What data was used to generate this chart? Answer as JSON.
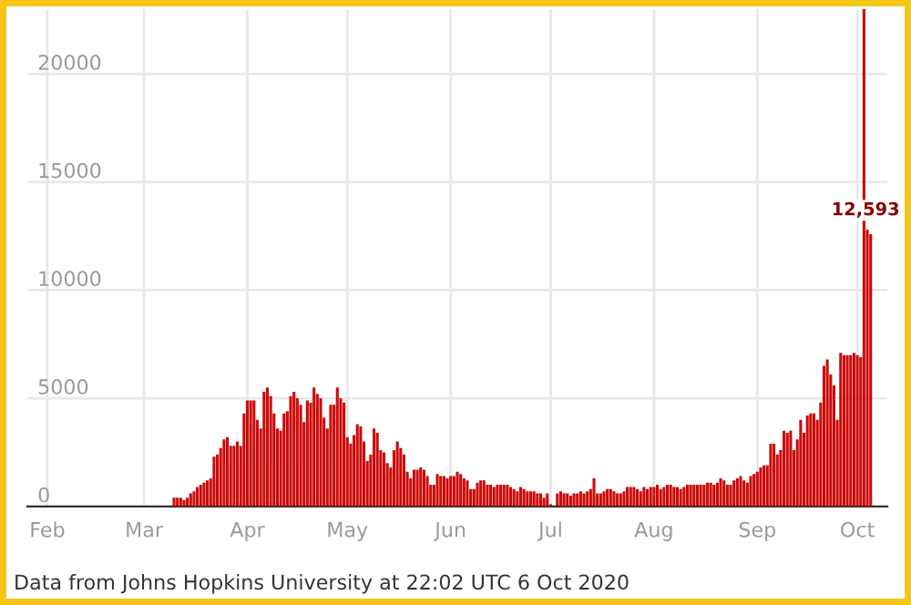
{
  "chart_data": {
    "type": "bar",
    "color": "#cc0a0a",
    "x": [
      "2020-03-01",
      "2020-03-02",
      "2020-03-03",
      "2020-03-04",
      "2020-03-05",
      "2020-03-06",
      "2020-03-07",
      "2020-03-08",
      "2020-03-09",
      "2020-03-10",
      "2020-03-11",
      "2020-03-12",
      "2020-03-13",
      "2020-03-14",
      "2020-03-15",
      "2020-03-16",
      "2020-03-17",
      "2020-03-18",
      "2020-03-19",
      "2020-03-20",
      "2020-03-21",
      "2020-03-22",
      "2020-03-23",
      "2020-03-24",
      "2020-03-25",
      "2020-03-26",
      "2020-03-27",
      "2020-03-28",
      "2020-03-29",
      "2020-03-30",
      "2020-03-31",
      "2020-04-01",
      "2020-04-02",
      "2020-04-03",
      "2020-04-04",
      "2020-04-05",
      "2020-04-06",
      "2020-04-07",
      "2020-04-08",
      "2020-04-09",
      "2020-04-10",
      "2020-04-11",
      "2020-04-12",
      "2020-04-13",
      "2020-04-14",
      "2020-04-15",
      "2020-04-16",
      "2020-04-17",
      "2020-04-18",
      "2020-04-19",
      "2020-04-20",
      "2020-04-21",
      "2020-04-22",
      "2020-04-23",
      "2020-04-24",
      "2020-04-25",
      "2020-04-26",
      "2020-04-27",
      "2020-04-28",
      "2020-04-29",
      "2020-04-30",
      "2020-05-01",
      "2020-05-02",
      "2020-05-03",
      "2020-05-04",
      "2020-05-05",
      "2020-05-06",
      "2020-05-07",
      "2020-05-08",
      "2020-05-09",
      "2020-05-10",
      "2020-05-11",
      "2020-05-12",
      "2020-05-13",
      "2020-05-14",
      "2020-05-15",
      "2020-05-16",
      "2020-05-17",
      "2020-05-18",
      "2020-05-19",
      "2020-05-20",
      "2020-05-21",
      "2020-05-22",
      "2020-05-23",
      "2020-05-24",
      "2020-05-25",
      "2020-05-26",
      "2020-05-27",
      "2020-05-28",
      "2020-05-29",
      "2020-05-30",
      "2020-05-31",
      "2020-06-01",
      "2020-06-02",
      "2020-06-03",
      "2020-06-04",
      "2020-06-05",
      "2020-06-06",
      "2020-06-07",
      "2020-06-08",
      "2020-06-09",
      "2020-06-10",
      "2020-06-11",
      "2020-06-12",
      "2020-06-13",
      "2020-06-14",
      "2020-06-15",
      "2020-06-16",
      "2020-06-17",
      "2020-06-18",
      "2020-06-19",
      "2020-06-20",
      "2020-06-21",
      "2020-06-22",
      "2020-06-23",
      "2020-06-24",
      "2020-06-25",
      "2020-06-26",
      "2020-06-27",
      "2020-06-28",
      "2020-06-29",
      "2020-06-30",
      "2020-07-01",
      "2020-07-02",
      "2020-07-03",
      "2020-07-04",
      "2020-07-05",
      "2020-07-06",
      "2020-07-07",
      "2020-07-08",
      "2020-07-09",
      "2020-07-10",
      "2020-07-11",
      "2020-07-12",
      "2020-07-13",
      "2020-07-14",
      "2020-07-15",
      "2020-07-16",
      "2020-07-17",
      "2020-07-18",
      "2020-07-19",
      "2020-07-20",
      "2020-07-21",
      "2020-07-22",
      "2020-07-23",
      "2020-07-24",
      "2020-07-25",
      "2020-07-26",
      "2020-07-27",
      "2020-07-28",
      "2020-07-29",
      "2020-07-30",
      "2020-07-31",
      "2020-08-01",
      "2020-08-02",
      "2020-08-03",
      "2020-08-04",
      "2020-08-05",
      "2020-08-06",
      "2020-08-07",
      "2020-08-08",
      "2020-08-09",
      "2020-08-10",
      "2020-08-11",
      "2020-08-12",
      "2020-08-13",
      "2020-08-14",
      "2020-08-15",
      "2020-08-16",
      "2020-08-17",
      "2020-08-18",
      "2020-08-19",
      "2020-08-20",
      "2020-08-21",
      "2020-08-22",
      "2020-08-23",
      "2020-08-24",
      "2020-08-25",
      "2020-08-26",
      "2020-08-27",
      "2020-08-28",
      "2020-08-29",
      "2020-08-30",
      "2020-08-31",
      "2020-09-01",
      "2020-09-02",
      "2020-09-03",
      "2020-09-04",
      "2020-09-05",
      "2020-09-06",
      "2020-09-07",
      "2020-09-08",
      "2020-09-09",
      "2020-09-10",
      "2020-09-11",
      "2020-09-12",
      "2020-09-13",
      "2020-09-14",
      "2020-09-15",
      "2020-09-16",
      "2020-09-17",
      "2020-09-18",
      "2020-09-19",
      "2020-09-20",
      "2020-09-21",
      "2020-09-22",
      "2020-09-23",
      "2020-09-24",
      "2020-09-25",
      "2020-09-26",
      "2020-09-27",
      "2020-09-28",
      "2020-09-29",
      "2020-09-30",
      "2020-10-01",
      "2020-10-02",
      "2020-10-03",
      "2020-10-04",
      "2020-10-05"
    ],
    "values": [
      0,
      0,
      0,
      0,
      0,
      0,
      0,
      0,
      0,
      400,
      400,
      400,
      300,
      400,
      600,
      700,
      900,
      1000,
      1100,
      1200,
      1300,
      2300,
      2400,
      2700,
      3100,
      3200,
      2800,
      2800,
      3000,
      2800,
      4300,
      4900,
      4900,
      4900,
      4000,
      3600,
      5300,
      5500,
      5100,
      4300,
      3600,
      3500,
      4300,
      4400,
      5100,
      5300,
      5000,
      4700,
      3900,
      4900,
      4800,
      5500,
      5200,
      5000,
      4100,
      3600,
      4700,
      4700,
      5500,
      5000,
      4800,
      3200,
      2900,
      3300,
      3800,
      3700,
      3000,
      2100,
      2400,
      3600,
      3400,
      2600,
      2500,
      2000,
      1800,
      2600,
      3000,
      2700,
      2400,
      1600,
      1300,
      1700,
      1700,
      1800,
      1700,
      1400,
      1000,
      1000,
      1500,
      1400,
      1400,
      1300,
      1400,
      1400,
      1600,
      1500,
      1300,
      1200,
      800,
      800,
      1100,
      1200,
      1200,
      1000,
      1000,
      900,
      1000,
      1000,
      1000,
      1000,
      900,
      800,
      700,
      900,
      800,
      700,
      700,
      700,
      600,
      600,
      400,
      600,
      100,
      0,
      600,
      700,
      600,
      600,
      500,
      600,
      600,
      700,
      600,
      700,
      800,
      1300,
      600,
      600,
      700,
      800,
      800,
      700,
      600,
      600,
      700,
      900,
      900,
      900,
      800,
      700,
      900,
      800,
      900,
      900,
      1000,
      800,
      900,
      1000,
      1000,
      900,
      900,
      800,
      900,
      1000,
      1000,
      1000,
      1000,
      1000,
      1000,
      1100,
      1100,
      1000,
      1100,
      1300,
      1200,
      1000,
      1000,
      1200,
      1300,
      1400,
      1200,
      1100,
      1400,
      1500,
      1600,
      1800,
      1900,
      1900,
      2900,
      2900,
      2400,
      2600,
      3500,
      3400,
      3500,
      2600,
      3100,
      4000,
      3400,
      4200,
      4300,
      4300,
      4000,
      4800,
      6500,
      6800,
      6100,
      5600,
      4000,
      7100,
      7000,
      7000,
      7000,
      7100,
      7000,
      6900,
      23000,
      12800,
      12593
    ],
    "xlim": [
      "2020-01-26",
      "2020-10-10"
    ],
    "xticks": [
      {
        "value": "2020-02-01",
        "label": "Feb"
      },
      {
        "value": "2020-03-01",
        "label": "Mar"
      },
      {
        "value": "2020-04-01",
        "label": "Apr"
      },
      {
        "value": "2020-05-01",
        "label": "May"
      },
      {
        "value": "2020-06-01",
        "label": "Jun"
      },
      {
        "value": "2020-07-01",
        "label": "Jul"
      },
      {
        "value": "2020-08-01",
        "label": "Aug"
      },
      {
        "value": "2020-09-01",
        "label": "Sep"
      },
      {
        "value": "2020-10-01",
        "label": "Oct"
      }
    ],
    "ylim": [
      0,
      23000
    ],
    "yticks": [
      0,
      5000,
      10000,
      15000,
      20000
    ],
    "grid": true,
    "annotations": [
      {
        "text": "12,593",
        "x": "2020-10-05",
        "y": 12593
      },
      "Data from Johns Hopkins University at 22:02 UTC 6 Oct 2020"
    ]
  }
}
